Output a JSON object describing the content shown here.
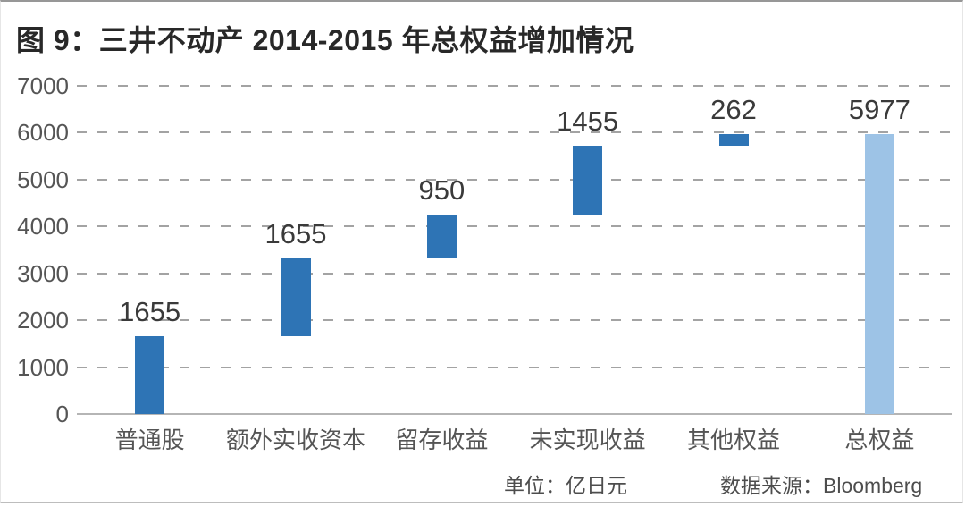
{
  "figure": {
    "title": "图 9：三井不动产 2014-2015 年总权益增加情况",
    "unit_note": "单位：亿日元",
    "source_note": "数据来源：Bloomberg"
  },
  "chart_data": {
    "type": "bar",
    "subtype": "waterfall",
    "title": "图 9：三井不动产 2014-2015 年总权益增加情况",
    "categories": [
      "普通股",
      "额外实收资本",
      "留存收益",
      "未实现收益",
      "其他权益",
      "总权益"
    ],
    "values": [
      1655,
      1655,
      950,
      1455,
      262,
      5977
    ],
    "bar_kinds": [
      "increment",
      "increment",
      "increment",
      "increment",
      "increment",
      "total"
    ],
    "data_labels": [
      "1655",
      "1655",
      "950",
      "1455",
      "262",
      "5977"
    ],
    "cumulative_spans": [
      [
        0,
        1655
      ],
      [
        1655,
        3310
      ],
      [
        3310,
        4260
      ],
      [
        4260,
        5715
      ],
      [
        5715,
        5977
      ],
      [
        0,
        5977
      ]
    ],
    "xlabel": "",
    "ylabel": "",
    "unit": "亿日元",
    "source": "Bloomberg",
    "ylim": [
      0,
      7000
    ],
    "yticks": [
      0,
      1000,
      2000,
      3000,
      4000,
      5000,
      6000,
      7000
    ],
    "grid": "horizontal-dashed",
    "legend": "none",
    "colors": {
      "increment": "#2E74B5",
      "total": "#9DC3E6"
    }
  },
  "colors": {
    "bar_increment": "#2E74B5",
    "bar_total": "#9DC3E6",
    "gridline": "#A3A3A3",
    "axis_line": "#B5B5B5",
    "title_text": "#282828",
    "tick_text": "#555555",
    "data_label_text": "#3A3A3A",
    "note_text": "#4D4D4D"
  }
}
